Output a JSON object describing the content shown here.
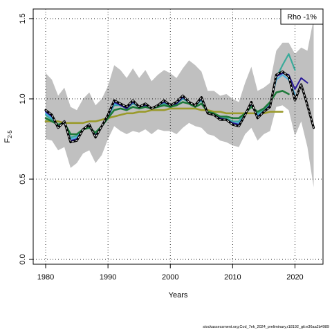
{
  "chart_data": {
    "type": "line",
    "xlabel": "Years",
    "ylabel_main": "F",
    "ylabel_sub": "2-5",
    "xlim": [
      1978,
      2024.5
    ],
    "ylim": [
      -0.03,
      1.56
    ],
    "x_ticks": [
      1980,
      1990,
      2000,
      2010,
      2020
    ],
    "y_ticks": [
      0.0,
      0.5,
      1.0,
      1.5
    ],
    "x_tick_labels": [
      "1980",
      "1990",
      "2000",
      "2010",
      "2020"
    ],
    "y_tick_labels": [
      "0.0",
      "0.5",
      "1.0",
      "1.5"
    ],
    "grid": true,
    "legend": {
      "position": "top-right",
      "text": "Rho -1%"
    },
    "footer": "stockassessment.org,Cod_7ek_2024_preliminary,r18192_git:e36aa2b4989",
    "colors": {
      "band": "#c0c0c0",
      "main": "#000000",
      "main_dash": "#ffffff",
      "teal": "#3aaa9a",
      "lightblue": "#4ab0e0",
      "navy": "#2a1a9a",
      "darkgreen": "#1e7a3a",
      "olive": "#9a9a2a"
    },
    "confidence_band": {
      "x": [
        1980,
        1981,
        1982,
        1983,
        1984,
        1985,
        1986,
        1987,
        1988,
        1989,
        1990,
        1991,
        1992,
        1993,
        1994,
        1995,
        1996,
        1997,
        1998,
        1999,
        2000,
        2001,
        2002,
        2003,
        2004,
        2005,
        2006,
        2007,
        2008,
        2009,
        2010,
        2011,
        2012,
        2013,
        2014,
        2015,
        2016,
        2017,
        2018,
        2019,
        2020,
        2021,
        2022,
        2023
      ],
      "upper": [
        1.16,
        1.12,
        1.02,
        1.07,
        0.95,
        0.93,
        1.0,
        1.04,
        0.96,
        1.0,
        1.08,
        1.21,
        1.18,
        1.13,
        1.19,
        1.13,
        1.18,
        1.11,
        1.15,
        1.18,
        1.16,
        1.13,
        1.19,
        1.24,
        1.21,
        1.17,
        1.05,
        1.05,
        1.02,
        1.03,
        1.0,
        0.98,
        1.1,
        1.2,
        1.05,
        1.07,
        1.1,
        1.3,
        1.35,
        1.35,
        1.28,
        1.32,
        1.3,
        1.5
      ],
      "lower": [
        0.75,
        0.74,
        0.68,
        0.7,
        0.57,
        0.6,
        0.66,
        0.68,
        0.6,
        0.65,
        0.75,
        0.83,
        0.8,
        0.78,
        0.8,
        0.79,
        0.81,
        0.78,
        0.81,
        0.8,
        0.8,
        0.78,
        0.82,
        0.85,
        0.83,
        0.82,
        0.78,
        0.77,
        0.74,
        0.73,
        0.71,
        0.7,
        0.78,
        0.82,
        0.74,
        0.78,
        0.8,
        0.95,
        0.96,
        0.93,
        0.77,
        0.86,
        0.7,
        0.45
      ]
    },
    "series": [
      {
        "key": "main",
        "x": [
          1980,
          1981,
          1982,
          1983,
          1984,
          1985,
          1986,
          1987,
          1988,
          1989,
          1990,
          1991,
          1992,
          1993,
          1994,
          1995,
          1996,
          1997,
          1998,
          1999,
          2000,
          2001,
          2002,
          2003,
          2004,
          2005,
          2006,
          2007,
          2008,
          2009,
          2010,
          2011,
          2012,
          2013,
          2014,
          2015,
          2016,
          2017,
          2018,
          2019,
          2020,
          2021,
          2022,
          2023
        ],
        "y": [
          0.93,
          0.9,
          0.82,
          0.86,
          0.73,
          0.74,
          0.81,
          0.84,
          0.76,
          0.83,
          0.9,
          0.99,
          0.97,
          0.95,
          0.99,
          0.95,
          0.97,
          0.94,
          0.96,
          0.99,
          0.96,
          0.98,
          1.02,
          0.98,
          0.96,
          1.01,
          0.91,
          0.9,
          0.87,
          0.87,
          0.84,
          0.83,
          0.9,
          0.98,
          0.88,
          0.92,
          0.95,
          1.15,
          1.17,
          1.14,
          0.99,
          1.09,
          0.96,
          0.82
        ]
      },
      {
        "key": "teal",
        "x": [
          1980,
          1981,
          1982,
          1983,
          1984,
          1985,
          1986,
          1987,
          1988,
          1989,
          1990,
          1991,
          1992,
          1993,
          1994,
          1995,
          1996,
          1997,
          1998,
          1999,
          2000,
          2001,
          2002,
          2003,
          2004,
          2005,
          2006,
          2007,
          2008,
          2009,
          2010,
          2011,
          2012,
          2013,
          2014,
          2015,
          2016,
          2017,
          2018,
          2019,
          2020
        ],
        "y": [
          0.9,
          0.87,
          0.84,
          0.85,
          0.76,
          0.77,
          0.81,
          0.82,
          0.78,
          0.83,
          0.89,
          0.96,
          0.96,
          0.94,
          0.97,
          0.95,
          0.96,
          0.94,
          0.96,
          0.97,
          0.96,
          0.97,
          1.0,
          0.98,
          0.96,
          0.99,
          0.92,
          0.91,
          0.89,
          0.88,
          0.86,
          0.86,
          0.91,
          0.96,
          0.91,
          0.93,
          0.97,
          1.13,
          1.21,
          1.28,
          1.18
        ]
      },
      {
        "key": "lightblue",
        "x": [
          1980,
          1981,
          1982,
          1983,
          1984,
          1985,
          1986,
          1987,
          1988,
          1989,
          1990,
          1991,
          1992,
          1993,
          1994,
          1995,
          1996,
          1997,
          1998,
          1999,
          2000,
          2001,
          2002,
          2003,
          2004,
          2005,
          2006,
          2007,
          2008,
          2009,
          2010,
          2011,
          2012,
          2013,
          2014,
          2015,
          2016,
          2017,
          2018,
          2019,
          2020
        ],
        "y": [
          0.91,
          0.88,
          0.83,
          0.85,
          0.75,
          0.76,
          0.81,
          0.83,
          0.77,
          0.83,
          0.89,
          0.97,
          0.96,
          0.94,
          0.98,
          0.95,
          0.96,
          0.94,
          0.96,
          0.98,
          0.96,
          0.97,
          1.01,
          0.98,
          0.96,
          1.0,
          0.91,
          0.9,
          0.88,
          0.87,
          0.85,
          0.85,
          0.9,
          0.97,
          0.9,
          0.92,
          0.96,
          1.12,
          1.15,
          1.12,
          1.03
        ]
      },
      {
        "key": "navy",
        "x": [
          1980,
          1981,
          1982,
          1983,
          1984,
          1985,
          1986,
          1987,
          1988,
          1989,
          1990,
          1991,
          1992,
          1993,
          1994,
          1995,
          1996,
          1997,
          1998,
          1999,
          2000,
          2001,
          2002,
          2003,
          2004,
          2005,
          2006,
          2007,
          2008,
          2009,
          2010,
          2011,
          2012,
          2013,
          2014,
          2015,
          2016,
          2017,
          2018,
          2019,
          2020,
          2021,
          2022
        ],
        "y": [
          0.92,
          0.89,
          0.83,
          0.85,
          0.74,
          0.75,
          0.81,
          0.83,
          0.77,
          0.83,
          0.89,
          0.98,
          0.96,
          0.94,
          0.98,
          0.95,
          0.96,
          0.94,
          0.96,
          0.98,
          0.96,
          0.97,
          1.01,
          0.98,
          0.96,
          1.0,
          0.91,
          0.9,
          0.88,
          0.87,
          0.85,
          0.84,
          0.9,
          0.97,
          0.89,
          0.92,
          0.96,
          1.14,
          1.16,
          1.15,
          1.06,
          1.13,
          1.1
        ]
      },
      {
        "key": "darkgreen",
        "x": [
          1980,
          1981,
          1982,
          1983,
          1984,
          1985,
          1986,
          1987,
          1988,
          1989,
          1990,
          1991,
          1992,
          1993,
          1994,
          1995,
          1996,
          1997,
          1998,
          1999,
          2000,
          2001,
          2002,
          2003,
          2004,
          2005,
          2006,
          2007,
          2008,
          2009,
          2010,
          2011,
          2012,
          2013,
          2014,
          2015,
          2016,
          2017,
          2018,
          2019
        ],
        "y": [
          0.88,
          0.86,
          0.84,
          0.85,
          0.78,
          0.78,
          0.81,
          0.82,
          0.79,
          0.83,
          0.88,
          0.93,
          0.94,
          0.93,
          0.95,
          0.94,
          0.95,
          0.94,
          0.95,
          0.96,
          0.95,
          0.96,
          0.98,
          0.97,
          0.95,
          0.97,
          0.92,
          0.91,
          0.89,
          0.89,
          0.88,
          0.88,
          0.91,
          0.95,
          0.92,
          0.94,
          0.98,
          1.04,
          1.05,
          1.03
        ]
      },
      {
        "key": "olive",
        "x": [
          1980,
          1981,
          1982,
          1983,
          1984,
          1985,
          1986,
          1987,
          1988,
          1989,
          1990,
          1991,
          1992,
          1993,
          1994,
          1995,
          1996,
          1997,
          1998,
          1999,
          2000,
          2001,
          2002,
          2003,
          2004,
          2005,
          2006,
          2007,
          2008,
          2009,
          2010,
          2011,
          2012,
          2013,
          2014,
          2015,
          2016,
          2017,
          2018
        ],
        "y": [
          0.86,
          0.86,
          0.86,
          0.85,
          0.85,
          0.85,
          0.85,
          0.86,
          0.86,
          0.87,
          0.88,
          0.89,
          0.9,
          0.91,
          0.91,
          0.92,
          0.92,
          0.93,
          0.93,
          0.93,
          0.94,
          0.94,
          0.94,
          0.94,
          0.94,
          0.93,
          0.93,
          0.92,
          0.92,
          0.91,
          0.91,
          0.91,
          0.91,
          0.91,
          0.91,
          0.91,
          0.92,
          0.92,
          0.92
        ]
      }
    ]
  }
}
